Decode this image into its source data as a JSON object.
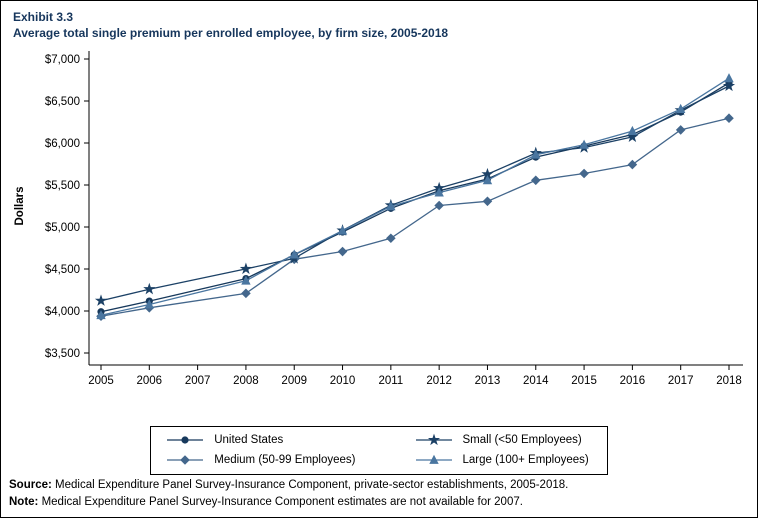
{
  "header": {
    "exhibit": "Exhibit 3.3",
    "title": "Average total single premium per enrolled employee, by firm size, 2005-2018"
  },
  "chart_data": {
    "type": "line",
    "title": "Average total single premium per enrolled employee, by firm size, 2005-2018",
    "xlabel": "",
    "ylabel": "Dollars",
    "ylim": [
      3500,
      7000
    ],
    "ytick_step": 500,
    "ytick_prefix": "$",
    "grid": false,
    "legend_position": "bottom",
    "categories": [
      "2005",
      "2006",
      "2007",
      "2008",
      "2009",
      "2010",
      "2011",
      "2012",
      "2013",
      "2014",
      "2015",
      "2016",
      "2017",
      "2018"
    ],
    "missing_data_year": "2007",
    "series": [
      {
        "name": "United States",
        "marker": "circle",
        "color": "#17395c",
        "values": [
          3991,
          4118,
          null,
          4386,
          4669,
          4940,
          5222,
          5432,
          5571,
          5832,
          5963,
          6101,
          6368,
          6715
        ]
      },
      {
        "name": "Medium (50-99 Employees)",
        "marker": "diamond",
        "color": "#44678c",
        "values": [
          3938,
          4038,
          null,
          4210,
          4615,
          4708,
          4866,
          5256,
          5306,
          5556,
          5637,
          5743,
          6156,
          6295
        ]
      },
      {
        "name": "Small (<50 Employees)",
        "marker": "star",
        "color": "#1c4166",
        "values": [
          4122,
          4260,
          null,
          4501,
          4626,
          4958,
          5258,
          5463,
          5628,
          5880,
          5945,
          6073,
          6390,
          6679
        ]
      },
      {
        "name": "Large (100+ Employees)",
        "marker": "triangle",
        "color": "#4a76a0",
        "values": [
          3949,
          4077,
          null,
          4360,
          4671,
          4956,
          5246,
          5410,
          5556,
          5860,
          5978,
          6142,
          6404,
          6770
        ]
      }
    ]
  },
  "footer": {
    "source_label": "Source:",
    "source_text": " Medical Expenditure Panel Survey-Insurance Component, private-sector establishments, 2005-2018.",
    "note_label": "Note:",
    "note_text": " Medical Expenditure Panel Survey-Insurance Component estimates are not available for 2007."
  }
}
